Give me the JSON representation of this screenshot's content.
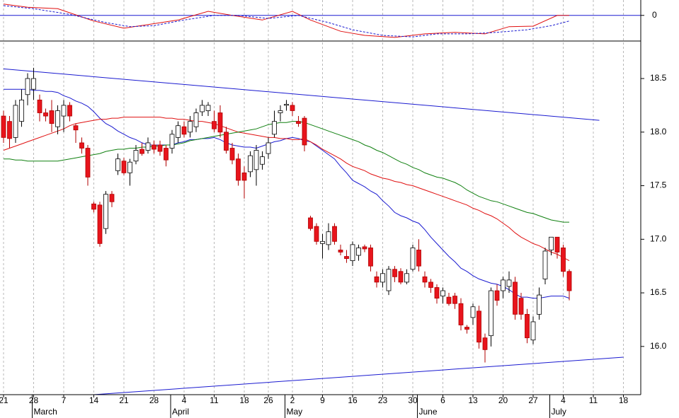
{
  "chart_data": {
    "type": "candlestick",
    "categories": [
      "21",
      null,
      null,
      null,
      null,
      "28",
      null,
      null,
      null,
      null,
      "7",
      null,
      null,
      null,
      null,
      "14",
      null,
      null,
      null,
      null,
      "21",
      null,
      null,
      null,
      null,
      "28",
      null,
      null,
      null,
      null,
      "4",
      null,
      null,
      null,
      null,
      "11",
      null,
      null,
      null,
      null,
      "18",
      null,
      null,
      null,
      "26",
      null,
      null,
      null,
      "2",
      null,
      null,
      null,
      null,
      "9",
      null,
      null,
      null,
      null,
      "16",
      null,
      null,
      null,
      null,
      "23",
      null,
      null,
      null,
      null,
      "30",
      null,
      null,
      null,
      null,
      "6",
      null,
      null,
      null,
      null,
      "13",
      null,
      null,
      null,
      null,
      "20",
      null,
      null,
      null,
      null,
      "27",
      null,
      null,
      null,
      null,
      "4",
      null,
      null,
      null,
      null,
      "11",
      null,
      null,
      null,
      null,
      "18",
      null
    ],
    "months": [
      null,
      null,
      null,
      null,
      null,
      "March",
      null,
      null,
      null,
      null,
      null,
      null,
      null,
      null,
      null,
      null,
      null,
      null,
      null,
      null,
      null,
      null,
      null,
      null,
      null,
      null,
      null,
      null,
      "April",
      null,
      null,
      null,
      null,
      null,
      null,
      null,
      null,
      null,
      null,
      null,
      null,
      null,
      null,
      null,
      null,
      null,
      null,
      "May",
      null,
      null,
      null,
      null,
      null,
      null,
      null,
      null,
      null,
      null,
      null,
      null,
      null,
      null,
      null,
      null,
      null,
      null,
      null,
      null,
      null,
      "June",
      null,
      null,
      null,
      null,
      null,
      null,
      null,
      null,
      null,
      null,
      null,
      null,
      null,
      null,
      null,
      null,
      null,
      null,
      null,
      null,
      null,
      "July",
      null,
      null,
      null,
      null,
      null,
      null,
      null,
      null,
      null,
      null,
      null,
      null,
      null
    ],
    "open": [
      18.15,
      18.1,
      17.95,
      18.1,
      18.35,
      18.4,
      18.3,
      18.18,
      18.2,
      18.05,
      18.15,
      18.25,
      18.06,
      17.9,
      17.85,
      17.33,
      17.32,
      17.1,
      17.42,
      17.64,
      17.73,
      17.62,
      17.73,
      17.84,
      17.83,
      17.88,
      17.88,
      17.85,
      17.85,
      17.95,
      18.05,
      18.0,
      18.05,
      18.19,
      18.2,
      18.1,
      18.18,
      18.0,
      17.85,
      17.75,
      17.62,
      17.63,
      17.65,
      17.7,
      17.8,
      17.98,
      18.18,
      18.25,
      18.25,
      18.1,
      18.13,
      17.2,
      17.12,
      16.96,
      16.95,
      17.12,
      16.9,
      16.84,
      16.8,
      16.85,
      16.93,
      16.92,
      16.65,
      16.6,
      16.52,
      16.72,
      16.7,
      16.6,
      16.72,
      16.9,
      16.65,
      16.6,
      16.55,
      16.47,
      16.46,
      16.47,
      16.4,
      16.18,
      16.27,
      16.33,
      16.08,
      16.1,
      16.52,
      16.52,
      16.56,
      16.6,
      16.45,
      16.3,
      16.06,
      16.3,
      16.63,
      16.9,
      17.02,
      16.92,
      16.7,
      null,
      null,
      null,
      null,
      null,
      null,
      null,
      null,
      null,
      null
    ],
    "high": [
      18.2,
      18.15,
      18.3,
      18.4,
      18.55,
      18.6,
      18.35,
      18.22,
      18.3,
      18.25,
      18.3,
      18.28,
      18.08,
      17.95,
      17.88,
      17.35,
      17.35,
      17.45,
      17.45,
      17.8,
      17.76,
      17.75,
      17.88,
      17.9,
      17.95,
      17.92,
      17.92,
      17.88,
      18.02,
      18.1,
      18.1,
      18.15,
      18.22,
      18.3,
      18.28,
      18.2,
      18.25,
      18.05,
      17.9,
      17.8,
      17.68,
      17.82,
      17.88,
      17.82,
      17.95,
      18.2,
      18.25,
      18.3,
      18.28,
      18.15,
      18.15,
      17.22,
      17.15,
      17.05,
      17.15,
      17.15,
      16.95,
      16.9,
      16.98,
      16.95,
      16.95,
      16.95,
      16.7,
      16.72,
      16.75,
      16.75,
      16.73,
      16.72,
      16.95,
      17.0,
      16.7,
      16.63,
      16.58,
      16.55,
      16.5,
      16.5,
      16.45,
      16.2,
      16.4,
      16.38,
      16.12,
      16.55,
      16.58,
      16.65,
      16.7,
      16.65,
      16.5,
      16.35,
      16.28,
      16.55,
      16.92,
      17.02,
      17.02,
      16.95,
      16.72,
      null,
      null,
      null,
      null,
      null,
      null,
      null,
      null,
      null,
      null
    ],
    "low": [
      17.9,
      17.85,
      17.9,
      18.05,
      18.25,
      18.3,
      18.1,
      18.1,
      18.0,
      17.98,
      18.0,
      18.1,
      17.9,
      17.8,
      17.5,
      17.25,
      16.93,
      17.05,
      17.3,
      17.6,
      17.6,
      17.5,
      17.7,
      17.78,
      17.8,
      17.8,
      17.78,
      17.68,
      17.8,
      17.9,
      17.95,
      17.95,
      18.0,
      18.15,
      18.15,
      18.0,
      17.95,
      17.8,
      17.7,
      17.5,
      17.38,
      17.58,
      17.5,
      17.65,
      17.75,
      17.95,
      18.1,
      18.2,
      18.15,
      18.05,
      17.82,
      17.08,
      16.95,
      16.82,
      16.9,
      16.95,
      16.85,
      16.78,
      16.75,
      16.8,
      16.88,
      16.7,
      16.55,
      16.55,
      16.48,
      16.6,
      16.58,
      16.58,
      16.7,
      16.7,
      16.55,
      16.5,
      16.4,
      16.4,
      16.38,
      16.35,
      16.15,
      16.12,
      16.2,
      15.98,
      15.85,
      16.0,
      16.38,
      16.45,
      16.5,
      16.25,
      16.25,
      16.03,
      16.02,
      16.25,
      16.58,
      16.85,
      16.82,
      16.65,
      16.43,
      null,
      null,
      null,
      null,
      null,
      null,
      null,
      null,
      null,
      null
    ],
    "close": [
      17.95,
      17.94,
      18.25,
      18.3,
      18.5,
      18.5,
      18.18,
      18.15,
      18.08,
      18.2,
      18.25,
      18.15,
      18.02,
      17.85,
      17.58,
      17.28,
      16.96,
      17.42,
      17.35,
      17.75,
      17.62,
      17.72,
      17.83,
      17.8,
      17.9,
      17.84,
      17.82,
      17.74,
      17.98,
      18.06,
      17.98,
      18.1,
      18.18,
      18.25,
      18.25,
      18.03,
      18.0,
      17.83,
      17.74,
      17.55,
      17.55,
      17.78,
      17.83,
      17.77,
      17.9,
      18.1,
      18.2,
      18.26,
      18.2,
      18.08,
      17.88,
      17.1,
      16.98,
      16.98,
      17.07,
      16.98,
      16.88,
      16.82,
      16.95,
      16.92,
      16.91,
      16.75,
      16.6,
      16.68,
      16.72,
      16.65,
      16.6,
      16.68,
      16.92,
      16.75,
      16.6,
      16.55,
      16.45,
      16.52,
      16.4,
      16.4,
      16.2,
      16.16,
      16.37,
      16.04,
      15.97,
      16.52,
      16.43,
      16.62,
      16.62,
      16.3,
      16.3,
      16.08,
      16.23,
      16.48,
      16.89,
      17.02,
      16.88,
      16.7,
      16.52,
      null,
      null,
      null,
      null,
      null,
      null,
      null,
      null,
      null,
      null
    ],
    "up_color": "#ffffff",
    "down_color": "#e8141c",
    "lines": [
      {
        "color": "#1a1ad0",
        "values": [
          18.4,
          18.4,
          18.4,
          18.4,
          18.4,
          18.39,
          18.39,
          18.38,
          18.38,
          18.37,
          18.34,
          18.32,
          18.29,
          18.27,
          18.24,
          18.19,
          18.13,
          18.08,
          18.05,
          18.01,
          17.98,
          17.95,
          17.93,
          17.9,
          17.88,
          17.88,
          17.88,
          17.88,
          17.88,
          17.9,
          17.91,
          17.93,
          17.93,
          17.94,
          17.94,
          17.95,
          17.93,
          17.9,
          17.88,
          17.87,
          17.86,
          17.86,
          17.85,
          17.87,
          17.89,
          17.91,
          17.92,
          17.94,
          17.95,
          17.94,
          17.92,
          17.91,
          17.87,
          17.83,
          17.79,
          17.75,
          17.68,
          17.62,
          17.55,
          17.52,
          17.49,
          17.45,
          17.42,
          17.36,
          17.31,
          17.25,
          17.22,
          17.2,
          17.17,
          17.15,
          17.09,
          17.02,
          16.96,
          16.9,
          16.84,
          16.79,
          16.73,
          16.7,
          16.66,
          16.63,
          16.61,
          16.59,
          16.58,
          16.56,
          16.53,
          16.49,
          16.46,
          16.46,
          16.45,
          16.45,
          16.46,
          16.47,
          16.47,
          16.47,
          16.45,
          null,
          null,
          null,
          null,
          null,
          null,
          null,
          null,
          null,
          null
        ]
      },
      {
        "color": "#e01010",
        "values": [
          17.83,
          17.85,
          17.87,
          17.89,
          17.91,
          17.93,
          17.95,
          17.97,
          17.99,
          18.01,
          18.03,
          18.06,
          18.08,
          18.09,
          18.1,
          18.11,
          18.12,
          18.12,
          18.13,
          18.13,
          18.14,
          18.14,
          18.14,
          18.14,
          18.14,
          18.14,
          18.14,
          18.13,
          18.13,
          18.12,
          18.12,
          18.11,
          18.1,
          18.1,
          18.09,
          18.08,
          18.06,
          18.04,
          18.02,
          18.0,
          17.99,
          17.98,
          17.97,
          17.96,
          17.95,
          17.95,
          17.94,
          17.94,
          17.93,
          17.93,
          17.94,
          17.91,
          17.88,
          17.84,
          17.81,
          17.78,
          17.75,
          17.71,
          17.68,
          17.66,
          17.64,
          17.61,
          17.59,
          17.57,
          17.56,
          17.54,
          17.53,
          17.51,
          17.5,
          17.48,
          17.46,
          17.44,
          17.42,
          17.4,
          17.38,
          17.36,
          17.34,
          17.32,
          17.29,
          17.27,
          17.24,
          17.22,
          17.19,
          17.15,
          17.11,
          17.06,
          17.02,
          16.99,
          16.96,
          16.94,
          16.91,
          16.88,
          16.86,
          16.83,
          16.8,
          null,
          null,
          null,
          null,
          null,
          null,
          null,
          null,
          null,
          null
        ]
      },
      {
        "color": "#108010",
        "values": [
          17.75,
          17.75,
          17.74,
          17.74,
          17.73,
          17.73,
          17.73,
          17.73,
          17.73,
          17.73,
          17.74,
          17.75,
          17.76,
          17.77,
          17.78,
          17.79,
          17.8,
          17.82,
          17.83,
          17.84,
          17.84,
          17.85,
          17.85,
          17.86,
          17.86,
          17.87,
          17.87,
          17.88,
          17.88,
          17.89,
          17.9,
          17.92,
          17.93,
          17.94,
          17.95,
          17.96,
          17.97,
          17.98,
          17.99,
          18.0,
          18.01,
          18.02,
          18.03,
          18.05,
          18.07,
          18.08,
          18.09,
          18.09,
          18.1,
          18.1,
          18.09,
          18.07,
          18.05,
          18.03,
          18.01,
          17.99,
          17.97,
          17.95,
          17.93,
          17.91,
          17.88,
          17.86,
          17.83,
          17.81,
          17.78,
          17.75,
          17.72,
          17.7,
          17.67,
          17.65,
          17.62,
          17.6,
          17.58,
          17.57,
          17.55,
          17.53,
          17.5,
          17.46,
          17.43,
          17.4,
          17.38,
          17.36,
          17.35,
          17.33,
          17.31,
          17.29,
          17.27,
          17.25,
          17.24,
          17.22,
          17.2,
          17.18,
          17.17,
          17.16,
          17.16,
          null,
          null,
          null,
          null,
          null,
          null,
          null,
          null,
          null,
          null
        ]
      }
    ],
    "trendlines": [
      {
        "color": "#1a1ad0",
        "x": [
          0,
          99
        ],
        "values": [
          18.59,
          18.11
        ]
      },
      {
        "color": "#1a1ad0",
        "x": [
          15,
          103
        ],
        "values": [
          15.55,
          15.9
        ]
      }
    ],
    "ylim": [
      15.55,
      18.85
    ],
    "yticks": [
      {
        "value": 16,
        "label": "16.0"
      },
      16.5,
      {
        "value": 17,
        "label": "17.0"
      },
      17.5,
      {
        "value": 18,
        "label": "18.0"
      },
      18.5
    ],
    "grid": true,
    "indicator": {
      "ylim": [
        -0.5,
        0.3
      ],
      "yticks": [
        0
      ],
      "series": [
        {
          "color": "#e01010",
          "dashed": false,
          "x": [
            0,
            4,
            9,
            15,
            20,
            24,
            29,
            34,
            38,
            43,
            48,
            51,
            56,
            60,
            65,
            70,
            75,
            80,
            84,
            88,
            92,
            94
          ],
          "values": [
            0.22,
            0.16,
            0.13,
            -0.11,
            -0.25,
            -0.18,
            -0.09,
            0.08,
            0.0,
            -0.09,
            0.08,
            -0.09,
            -0.31,
            -0.39,
            -0.43,
            -0.36,
            -0.33,
            -0.36,
            -0.22,
            -0.21,
            0.0,
            0.0
          ]
        },
        {
          "color": "#1a1ad0",
          "dashed": true,
          "x": [
            0,
            5,
            11,
            17,
            21,
            25,
            30,
            35,
            39,
            44,
            49,
            54,
            58,
            63,
            68,
            72,
            77,
            82,
            87,
            91,
            94
          ],
          "values": [
            0.19,
            0.13,
            0.02,
            -0.14,
            -0.22,
            -0.2,
            -0.09,
            0.0,
            0.0,
            -0.06,
            0.0,
            -0.14,
            -0.28,
            -0.39,
            -0.42,
            -0.36,
            -0.36,
            -0.33,
            -0.28,
            -0.2,
            -0.11
          ]
        }
      ]
    }
  }
}
